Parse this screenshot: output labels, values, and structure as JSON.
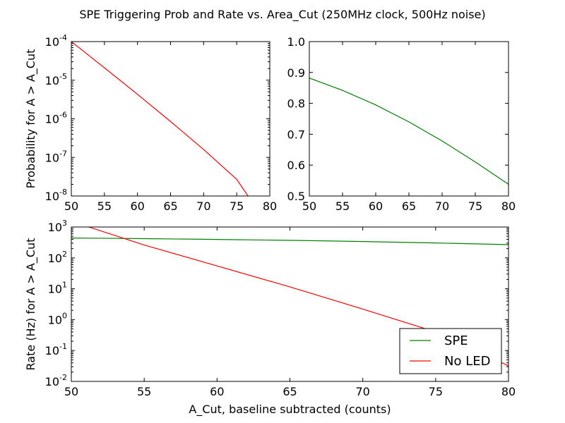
{
  "figure_title": "SPE Triggering Prob and Rate vs. Area_Cut (250MHz clock, 500Hz noise)",
  "chart_data": [
    {
      "type": "line",
      "panel": "top-left",
      "title": "",
      "xlabel": "",
      "ylabel": "Probability for A > A_Cut",
      "xlim": [
        50,
        80
      ],
      "ylim": [
        1e-08,
        0.0001
      ],
      "yscale": "log",
      "x_ticks": [
        "50",
        "55",
        "60",
        "65",
        "70",
        "75",
        "80"
      ],
      "y_tick_base": "10",
      "y_tick_exponents": [
        "-8",
        "-7",
        "-6",
        "-5",
        "-4"
      ],
      "series": [
        {
          "color": "#ff0000",
          "x": [
            50,
            55,
            60,
            65,
            70,
            75,
            76.7
          ],
          "y": [
            0.0001,
            2.1e-05,
            4.3e-06,
            8.5e-07,
            1.6e-07,
            2.7e-08,
            1e-08
          ]
        }
      ]
    },
    {
      "type": "line",
      "panel": "top-right",
      "title": "",
      "xlabel": "",
      "ylabel": "",
      "xlim": [
        50,
        80
      ],
      "ylim": [
        0.5,
        1.0
      ],
      "yscale": "linear",
      "x_ticks": [
        "50",
        "55",
        "60",
        "65",
        "70",
        "75",
        "80"
      ],
      "y_ticks": [
        "0.5",
        "0.6",
        "0.7",
        "0.8",
        "0.9",
        "1.0"
      ],
      "series": [
        {
          "color": "#008000",
          "x": [
            50,
            55,
            60,
            65,
            70,
            75,
            80
          ],
          "y": [
            0.882,
            0.842,
            0.795,
            0.74,
            0.678,
            0.61,
            0.538
          ]
        }
      ]
    },
    {
      "type": "line",
      "panel": "bottom",
      "title": "",
      "xlabel": "A_Cut, baseline subtracted (counts)",
      "ylabel": "Rate (Hz) for A > A_Cut",
      "xlim": [
        50,
        80
      ],
      "ylim": [
        0.01,
        1000
      ],
      "yscale": "log",
      "x_ticks": [
        "50",
        "55",
        "60",
        "65",
        "70",
        "75",
        "80"
      ],
      "y_tick_base": "10",
      "y_tick_exponents": [
        "-2",
        "-1",
        "0",
        "1",
        "2",
        "3"
      ],
      "legend_position": "lower-right",
      "series": [
        {
          "name": "SPE",
          "color": "#008000",
          "x": [
            50,
            55,
            60,
            65,
            70,
            75,
            80
          ],
          "y": [
            441,
            421,
            397,
            370,
            339,
            305,
            269
          ]
        },
        {
          "name": "No LED",
          "color": "#ff0000",
          "x": [
            51.2,
            55,
            60,
            65,
            70,
            75,
            80
          ],
          "y": [
            1000,
            260,
            55,
            11.5,
            2.2,
            0.4,
            0.032
          ]
        }
      ]
    }
  ]
}
